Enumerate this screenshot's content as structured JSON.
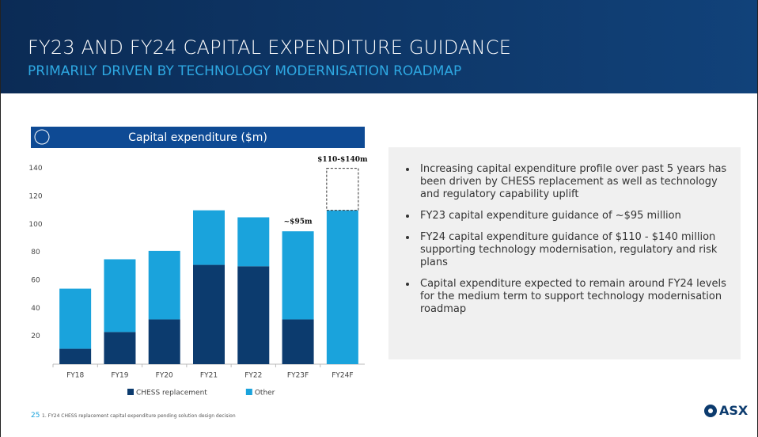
{
  "header": {
    "title": "FY23 AND FY24 CAPITAL EXPENDITURE GUIDANCE",
    "subtitle": "PRIMARILY DRIVEN BY TECHNOLOGY MODERNISATION ROADMAP"
  },
  "chart_data": {
    "type": "stacked_bar",
    "title": "Capital expenditure ($m)",
    "categories": [
      "FY18",
      "FY19",
      "FY20",
      "FY21",
      "FY22",
      "FY23F",
      "FY24F"
    ],
    "series": [
      {
        "name": "CHESS replacement",
        "color": "#0c3b6e",
        "values": [
          11,
          23,
          32,
          71,
          70,
          32,
          null
        ]
      },
      {
        "name": "Other",
        "color": "#1aa3dc",
        "values": [
          43,
          52,
          49,
          39,
          35,
          63,
          110
        ]
      }
    ],
    "ylim": [
      0,
      150
    ],
    "yticks": [
      20,
      40,
      60,
      80,
      100,
      120,
      140
    ],
    "annotations": [
      {
        "label": "~$95m",
        "category": "FY23F"
      },
      {
        "label": "$110-$140m",
        "category": "FY24F",
        "range": [
          110,
          140
        ]
      }
    ]
  },
  "bullets": [
    "Increasing capital expenditure profile over past 5 years has been driven by CHESS replacement as well as technology and regulatory capability uplift",
    "FY23 capital expenditure guidance of ~$95 million",
    "FY24 capital expenditure guidance of $110 - $140 million supporting technology modernisation, regulatory and risk plans",
    "Capital expenditure expected to remain around FY24 levels for the medium term to support technology modernisation roadmap"
  ],
  "footer": {
    "page": "25",
    "note": "1. FY24 CHESS replacement capital expenditure pending solution design decision",
    "logo": "ASX"
  }
}
